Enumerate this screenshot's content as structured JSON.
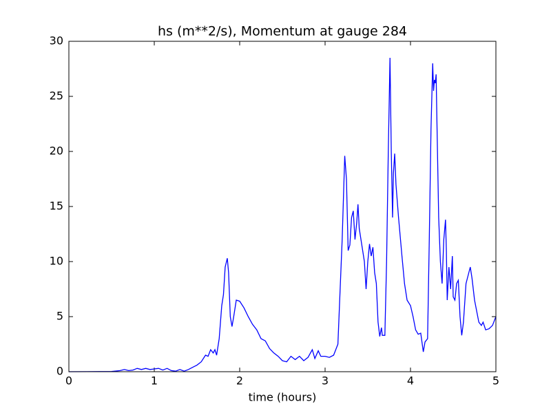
{
  "chart_data": {
    "type": "line",
    "title": "hs (m**2/s), Momentum at gauge 284",
    "x_label": "time (hours)",
    "color": "#0000ff",
    "reference_line": {
      "value": 0,
      "style": "dashed",
      "color": "#000000"
    },
    "xlim": [
      0,
      5
    ],
    "xticks": [
      0,
      1,
      2,
      3,
      4,
      5
    ],
    "ylim": [
      0,
      30
    ],
    "yticks": [
      0,
      5,
      10,
      15,
      20,
      25,
      30
    ],
    "x": [
      0,
      0.5,
      0.6,
      0.65,
      0.7,
      0.75,
      0.8,
      0.85,
      0.9,
      0.95,
      1.0,
      1.05,
      1.1,
      1.15,
      1.2,
      1.25,
      1.3,
      1.35,
      1.4,
      1.45,
      1.5,
      1.55,
      1.6,
      1.63,
      1.66,
      1.69,
      1.71,
      1.73,
      1.76,
      1.79,
      1.81,
      1.83,
      1.855,
      1.87,
      1.89,
      1.91,
      1.93,
      1.96,
      2.0,
      2.05,
      2.1,
      2.15,
      2.2,
      2.25,
      2.3,
      2.35,
      2.4,
      2.45,
      2.5,
      2.55,
      2.6,
      2.65,
      2.7,
      2.75,
      2.8,
      2.85,
      2.88,
      2.92,
      2.95,
      3.0,
      3.05,
      3.1,
      3.15,
      3.2,
      3.23,
      3.25,
      3.27,
      3.29,
      3.31,
      3.33,
      3.35,
      3.37,
      3.385,
      3.4,
      3.42,
      3.44,
      3.46,
      3.48,
      3.5,
      3.52,
      3.54,
      3.56,
      3.58,
      3.6,
      3.62,
      3.64,
      3.66,
      3.67,
      3.7,
      3.72,
      3.74,
      3.76,
      3.775,
      3.79,
      3.8,
      3.815,
      3.83,
      3.86,
      3.9,
      3.93,
      3.96,
      4.0,
      4.03,
      4.06,
      4.09,
      4.12,
      4.15,
      4.17,
      4.2,
      4.22,
      4.24,
      4.26,
      4.27,
      4.28,
      4.29,
      4.3,
      4.31,
      4.33,
      4.35,
      4.37,
      4.39,
      4.41,
      4.42,
      4.43,
      4.45,
      4.47,
      4.49,
      4.5,
      4.52,
      4.54,
      4.56,
      4.58,
      4.6,
      4.62,
      4.65,
      4.7,
      4.72,
      4.75,
      4.8,
      4.83,
      4.85,
      4.88,
      4.92,
      4.96,
      5.0
    ],
    "values": [
      0,
      0.02,
      0.1,
      0.2,
      0.1,
      0.15,
      0.3,
      0.2,
      0.3,
      0.2,
      0.25,
      0.3,
      0.15,
      0.3,
      0.1,
      0.05,
      0.2,
      0.05,
      0.2,
      0.4,
      0.6,
      0.9,
      1.5,
      1.4,
      2.0,
      1.7,
      2.0,
      1.5,
      3.0,
      6.0,
      7.0,
      9.5,
      10.3,
      9.0,
      5.0,
      4.1,
      5.0,
      6.5,
      6.4,
      5.8,
      5.0,
      4.3,
      3.8,
      3.0,
      2.8,
      2.1,
      1.7,
      1.4,
      1.0,
      0.9,
      1.4,
      1.1,
      1.4,
      1.0,
      1.3,
      2.0,
      1.2,
      1.9,
      1.4,
      1.4,
      1.3,
      1.5,
      2.5,
      12,
      19.6,
      17.5,
      11.0,
      11.5,
      14.0,
      14.6,
      12.0,
      13.5,
      15.2,
      13.0,
      12.0,
      11.0,
      10.0,
      7.5,
      10.0,
      11.6,
      10.5,
      11.3,
      9.0,
      8.0,
      4.5,
      3.2,
      4.0,
      3.3,
      3.3,
      10,
      20,
      28.5,
      20,
      14,
      18,
      19.8,
      17,
      14,
      10.5,
      8.0,
      6.5,
      6.0,
      5.0,
      3.8,
      3.4,
      3.5,
      1.8,
      2.7,
      3.0,
      12,
      22,
      28,
      25.5,
      26.5,
      26.2,
      27,
      22.5,
      14,
      10,
      8.0,
      12,
      13.8,
      11,
      6.5,
      9.5,
      7.5,
      10.5,
      6.8,
      6.5,
      8.0,
      8.3,
      5.0,
      3.3,
      4.5,
      8.0,
      9.5,
      8.5,
      6.5,
      4.5,
      4.2,
      4.5,
      3.8,
      3.9,
      4.2,
      5.0
    ]
  }
}
